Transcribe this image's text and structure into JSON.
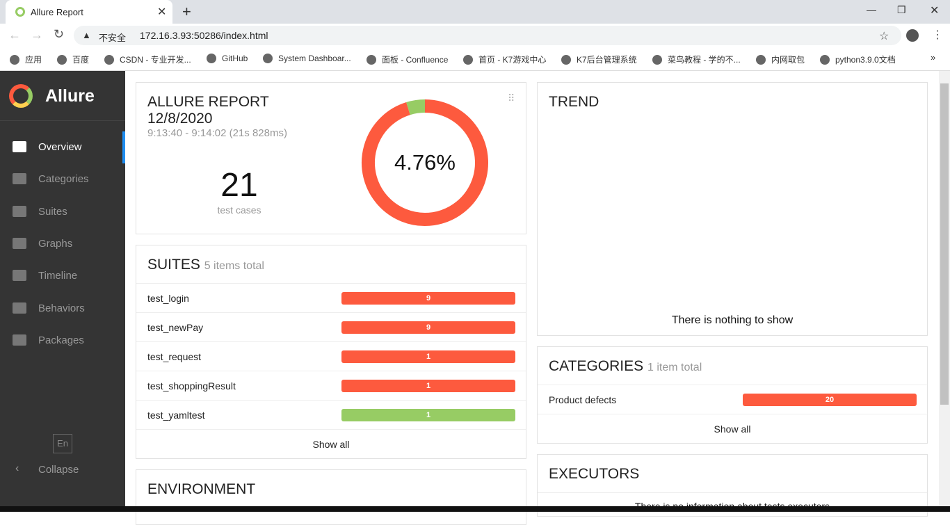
{
  "browser": {
    "tab_title": "Allure Report",
    "security": "不安全",
    "url": "172.16.3.93:50286/index.html",
    "bookmarks": [
      "应用",
      "百度",
      "CSDN - 专业开发...",
      "GitHub",
      "System Dashboar...",
      "面板 - Confluence",
      "首页 - K7游戏中心",
      "K7后台管理系统",
      "菜鸟教程 - 学的不...",
      "内网取包",
      "python3.9.0文档"
    ]
  },
  "sidebar": {
    "brand": "Allure",
    "nav": [
      "Overview",
      "Categories",
      "Suites",
      "Graphs",
      "Timeline",
      "Behaviors",
      "Packages"
    ],
    "language": "En",
    "collapse": "Collapse"
  },
  "summary": {
    "title": "ALLURE REPORT",
    "date": "12/8/2020",
    "time": "9:13:40 - 9:14:02 (21s 828ms)",
    "count": "21",
    "count_label": "test cases",
    "percent": "4.76%",
    "donut": [
      {
        "value": 20,
        "color": "#fd5a3e"
      },
      {
        "value": 1,
        "color": "#97cc64"
      }
    ]
  },
  "suites": {
    "title": "SUITES",
    "subtitle": "5 items total",
    "show_all": "Show all",
    "rows": [
      {
        "name": "test_login",
        "value": "9",
        "color": "#fd5a3e"
      },
      {
        "name": "test_newPay",
        "value": "9",
        "color": "#fd5a3e"
      },
      {
        "name": "test_request",
        "value": "1",
        "color": "#fd5a3e"
      },
      {
        "name": "test_shoppingResult",
        "value": "1",
        "color": "#fd5a3e"
      },
      {
        "name": "test_yamltest",
        "value": "1",
        "color": "#97cc64"
      }
    ]
  },
  "environment": {
    "title": "ENVIRONMENT"
  },
  "trend": {
    "title": "TREND",
    "empty": "There is nothing to show"
  },
  "categories": {
    "title": "CATEGORIES",
    "subtitle": "1 item total",
    "show_all": "Show all",
    "rows": [
      {
        "name": "Product defects",
        "value": "20",
        "color": "#fd5a3e"
      }
    ]
  },
  "executors": {
    "title": "EXECUTORS",
    "empty": "There is no information about tests executors"
  }
}
